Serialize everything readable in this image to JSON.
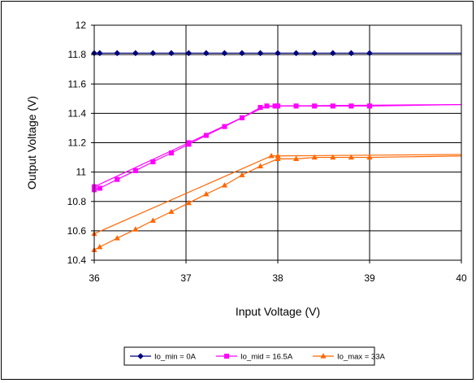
{
  "chart_data": {
    "type": "line",
    "title": "",
    "xlabel": "Input Voltage (V)",
    "ylabel": "Output Voltage (V)",
    "xlim": [
      36,
      40
    ],
    "ylim": [
      10.4,
      12
    ],
    "xticks": [
      "36",
      "37",
      "38",
      "39",
      "40"
    ],
    "yticks": [
      "10.4",
      "10.6",
      "10.8",
      "11",
      "11.2",
      "11.4",
      "11.6",
      "11.8",
      "12"
    ],
    "grid": true,
    "legend_position": "bottom",
    "series": [
      {
        "name": "Io_min = 0A",
        "color": "#00007f",
        "marker": "diamond",
        "points": [
          [
            36.0,
            11.81
          ],
          [
            36.06,
            11.81
          ],
          [
            36.25,
            11.81
          ],
          [
            36.45,
            11.81
          ],
          [
            36.64,
            11.81
          ],
          [
            36.84,
            11.81
          ],
          [
            37.03,
            11.81
          ],
          [
            37.22,
            11.81
          ],
          [
            37.42,
            11.81
          ],
          [
            37.61,
            11.81
          ],
          [
            37.81,
            11.81
          ],
          [
            38.0,
            11.81
          ],
          [
            38.2,
            11.81
          ],
          [
            38.4,
            11.81
          ],
          [
            38.6,
            11.81
          ],
          [
            38.8,
            11.81
          ],
          [
            39.0,
            11.81
          ],
          [
            40.0,
            11.81
          ]
        ]
      },
      {
        "name": "Io_mid = 16.5A",
        "color": "#ff00ff",
        "marker": "square",
        "points": [
          [
            36.0,
            10.88
          ],
          [
            36.06,
            10.89
          ],
          [
            36.25,
            10.95
          ],
          [
            36.45,
            11.01
          ],
          [
            36.64,
            11.07
          ],
          [
            36.84,
            11.13
          ],
          [
            37.03,
            11.19
          ],
          [
            37.22,
            11.25
          ],
          [
            37.42,
            11.31
          ],
          [
            37.61,
            11.37
          ],
          [
            37.81,
            11.44
          ],
          [
            37.97,
            11.45
          ],
          [
            38.0,
            11.45
          ],
          [
            38.2,
            11.45
          ],
          [
            38.4,
            11.45
          ],
          [
            38.6,
            11.45
          ],
          [
            38.8,
            11.45
          ],
          [
            39.0,
            11.45
          ],
          [
            40.0,
            11.46
          ]
        ]
      },
      {
        "name": "Io_max = 33A",
        "color": "#ff6600",
        "marker": "triangle",
        "points": [
          [
            36.0,
            10.47
          ],
          [
            36.06,
            10.49
          ],
          [
            36.25,
            10.55
          ],
          [
            36.45,
            10.61
          ],
          [
            36.64,
            10.67
          ],
          [
            36.84,
            10.73
          ],
          [
            37.03,
            10.79
          ],
          [
            37.22,
            10.85
          ],
          [
            37.42,
            10.91
          ],
          [
            37.61,
            10.98
          ],
          [
            37.81,
            11.04
          ],
          [
            38.0,
            11.09
          ],
          [
            38.2,
            11.09
          ],
          [
            38.4,
            11.1
          ],
          [
            38.6,
            11.1
          ],
          [
            38.8,
            11.1
          ],
          [
            39.0,
            11.1
          ],
          [
            40.0,
            11.11
          ]
        ]
      },
      {
        "name": "",
        "color": "#ff6600",
        "marker": "triangle",
        "points": [
          [
            36.0,
            10.58
          ],
          [
            37.93,
            11.11
          ],
          [
            38.0,
            11.11
          ],
          [
            40.0,
            11.12
          ]
        ]
      },
      {
        "name": "",
        "color": "#ff00ff",
        "marker": "square",
        "points": [
          [
            36.0,
            10.9
          ],
          [
            37.03,
            11.2
          ],
          [
            37.88,
            11.45
          ],
          [
            40.0,
            11.46
          ]
        ]
      }
    ]
  }
}
